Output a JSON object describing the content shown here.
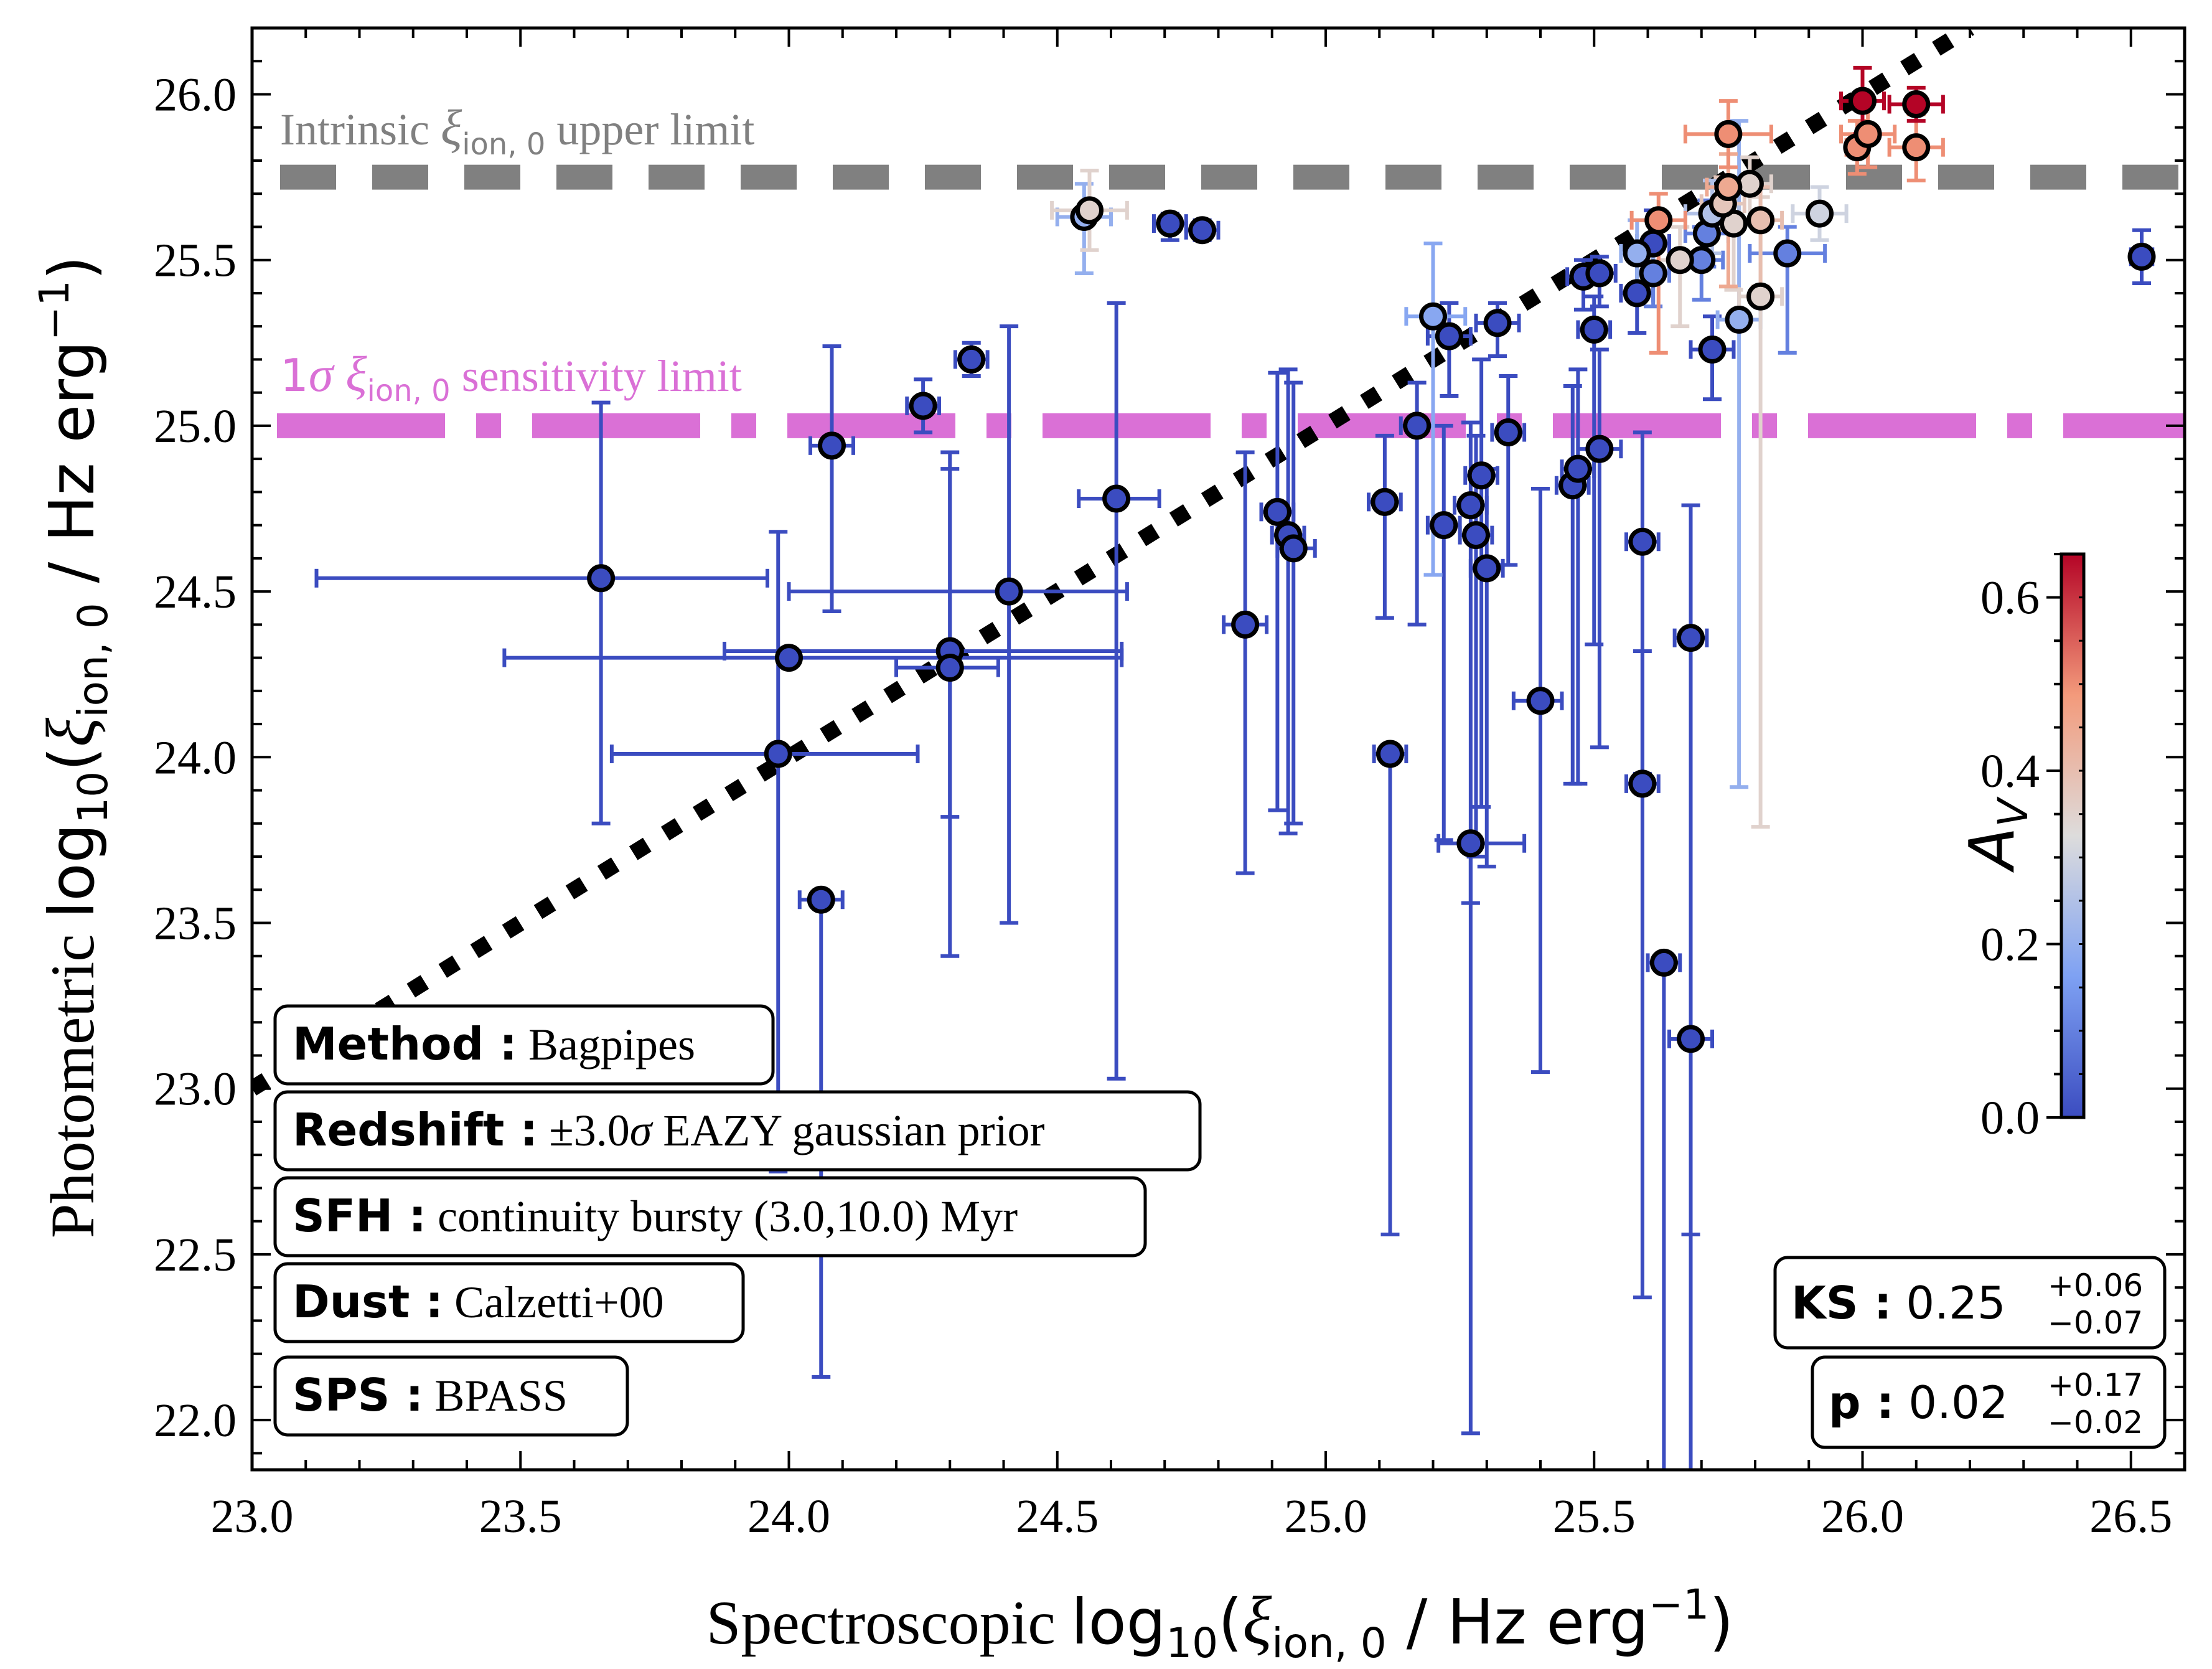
{
  "chart_data": {
    "type": "scatter",
    "xlabel_prefix": "Spectroscopic",
    "xlabel_math": "log",
    "xlabel_sub": "10",
    "xlabel_xi": "ξ",
    "xlabel_ion": "ion, 0",
    "xlabel_unit": " / Hz erg",
    "xlabel_exp": "−1",
    "ylabel_prefix": "Photometric",
    "ylabel_math": "log",
    "ylabel_sub": "10",
    "ylabel_xi": "ξ",
    "ylabel_ion": "ion, 0",
    "ylabel_unit": " / Hz erg",
    "ylabel_exp": "−1",
    "xlim": [
      23.0,
      26.6
    ],
    "ylim": [
      21.85,
      26.2
    ],
    "xticks": [
      23.0,
      23.5,
      24.0,
      24.5,
      25.0,
      25.5,
      26.0,
      26.5
    ],
    "xtick_labels": [
      "23.0",
      "23.5",
      "24.0",
      "24.5",
      "25.0",
      "25.5",
      "26.0",
      "26.5"
    ],
    "yticks": [
      22.0,
      22.5,
      23.0,
      23.5,
      24.0,
      24.5,
      25.0,
      25.5,
      26.0
    ],
    "ytick_labels": [
      "22.0",
      "22.5",
      "23.0",
      "23.5",
      "24.0",
      "24.5",
      "25.0",
      "25.5",
      "26.0"
    ],
    "hlines": [
      {
        "name": "intrinsic-upper-limit",
        "y": 25.75,
        "color": "#808080",
        "style": "dashed",
        "label_a": "Intrinsic ",
        "label_xi": "ξ",
        "label_ion": "ion, 0",
        "label_b": " upper limit"
      },
      {
        "name": "sensitivity-limit",
        "y": 25.0,
        "color": "#da70d6",
        "style": "dashdot",
        "label_a": "1",
        "label_sigma": "σ",
        "label_xi": " ξ",
        "label_ion": "ion, 0",
        "label_b": " sensitivity limit"
      }
    ],
    "one_to_one": {
      "from": [
        23.0,
        23.0
      ],
      "to": [
        26.2,
        26.2
      ],
      "style": "dotted",
      "color": "#000000"
    },
    "colorbar": {
      "label": "A",
      "label_sub": "V",
      "min": 0.0,
      "max": 0.65,
      "ticks": [
        0.0,
        0.2,
        0.4,
        0.6
      ],
      "tick_labels": [
        "0.0",
        "0.2",
        "0.4",
        "0.6"
      ]
    },
    "points": [
      {
        "x": 23.65,
        "y": 24.54,
        "xe": [
          0.53,
          0.31
        ],
        "ye": [
          0.74,
          0.53
        ],
        "av": 0.0
      },
      {
        "x": 24.0,
        "y": 24.3,
        "xe": [
          0.53,
          0.62
        ],
        "ye": [
          0.0,
          0.0
        ],
        "av": 0.0
      },
      {
        "x": 23.98,
        "y": 24.01,
        "xe": [
          0.31,
          0.26
        ],
        "ye": [
          1.26,
          0.67
        ],
        "av": 0.0
      },
      {
        "x": 24.06,
        "y": 23.57,
        "xe": [
          0.04,
          0.04
        ],
        "ye": [
          1.44,
          0.0
        ],
        "av": 0.0
      },
      {
        "x": 24.08,
        "y": 24.94,
        "xe": [
          0.04,
          0.04
        ],
        "ye": [
          0.5,
          0.3
        ],
        "av": 0.0
      },
      {
        "x": 24.25,
        "y": 25.06,
        "xe": [
          0.03,
          0.03
        ],
        "ye": [
          0.08,
          0.08
        ],
        "av": 0.0
      },
      {
        "x": 24.3,
        "y": 24.32,
        "xe": [
          0.42,
          0.32
        ],
        "ye": [
          0.92,
          0.6
        ],
        "av": 0.0
      },
      {
        "x": 24.3,
        "y": 24.27,
        "xe": [
          0.1,
          0.09
        ],
        "ye": [
          0.45,
          0.6
        ],
        "av": 0.0
      },
      {
        "x": 24.34,
        "y": 25.2,
        "xe": [
          0.03,
          0.03
        ],
        "ye": [
          0.05,
          0.05
        ],
        "av": 0.0
      },
      {
        "x": 24.41,
        "y": 24.5,
        "xe": [
          0.41,
          0.22
        ],
        "ye": [
          1.0,
          0.8
        ],
        "av": 0.0
      },
      {
        "x": 24.55,
        "y": 25.63,
        "xe": [
          0.05,
          0.05
        ],
        "ye": [
          0.17,
          0.1
        ],
        "av": 0.2
      },
      {
        "x": 24.56,
        "y": 25.65,
        "xe": [
          0.07,
          0.07
        ],
        "ye": [
          0.12,
          0.12
        ],
        "av": 0.35
      },
      {
        "x": 24.61,
        "y": 24.78,
        "xe": [
          0.07,
          0.08
        ],
        "ye": [
          1.75,
          0.59
        ],
        "av": 0.0
      },
      {
        "x": 24.71,
        "y": 25.61,
        "xe": [
          0.03,
          0.03
        ],
        "ye": [
          0.05,
          0.03
        ],
        "av": 0.0
      },
      {
        "x": 24.77,
        "y": 25.59,
        "xe": [
          0.03,
          0.03
        ],
        "ye": [
          0.03,
          0.03
        ],
        "av": 0.0
      },
      {
        "x": 24.85,
        "y": 24.4,
        "xe": [
          0.04,
          0.04
        ],
        "ye": [
          0.75,
          0.52
        ],
        "av": 0.0
      },
      {
        "x": 24.91,
        "y": 24.74,
        "xe": [
          0.03,
          0.03
        ],
        "ye": [
          0.9,
          0.42
        ],
        "av": 0.0
      },
      {
        "x": 24.93,
        "y": 24.67,
        "xe": [
          0.03,
          0.03
        ],
        "ye": [
          0.9,
          0.5
        ],
        "av": 0.0
      },
      {
        "x": 24.94,
        "y": 24.63,
        "xe": [
          0.03,
          0.04
        ],
        "ye": [
          0.83,
          0.5
        ],
        "av": 0.0
      },
      {
        "x": 25.11,
        "y": 24.77,
        "xe": [
          0.03,
          0.03
        ],
        "ye": [
          0.35,
          0.2
        ],
        "av": 0.0
      },
      {
        "x": 25.12,
        "y": 24.01,
        "xe": [
          0.03,
          0.03
        ],
        "ye": [
          1.45,
          0.0
        ],
        "av": 0.0
      },
      {
        "x": 25.17,
        "y": 25.0,
        "xe": [
          0.03,
          0.03
        ],
        "ye": [
          0.6,
          0.13
        ],
        "av": 0.0
      },
      {
        "x": 25.2,
        "y": 25.33,
        "xe": [
          0.05,
          0.06
        ],
        "ye": [
          0.78,
          0.22
        ],
        "av": 0.18
      },
      {
        "x": 25.22,
        "y": 24.7,
        "xe": [
          0.03,
          0.03
        ],
        "ye": [
          0.95,
          0.3
        ],
        "av": 0.0
      },
      {
        "x": 25.23,
        "y": 25.27,
        "xe": [
          0.04,
          0.04
        ],
        "ye": [
          0.18,
          0.1
        ],
        "av": 0.0
      },
      {
        "x": 25.27,
        "y": 24.76,
        "xe": [
          0.03,
          0.03
        ],
        "ye": [
          1.2,
          0.25
        ],
        "av": 0.0
      },
      {
        "x": 25.27,
        "y": 23.74,
        "xe": [
          0.06,
          0.1
        ],
        "ye": [
          1.78,
          0.0
        ],
        "av": 0.0
      },
      {
        "x": 25.28,
        "y": 24.67,
        "xe": [
          0.03,
          0.03
        ],
        "ye": [
          0.97,
          0.3
        ],
        "av": 0.0
      },
      {
        "x": 25.29,
        "y": 24.85,
        "xe": [
          0.03,
          0.03
        ],
        "ye": [
          1.0,
          0.35
        ],
        "av": 0.0
      },
      {
        "x": 25.3,
        "y": 24.57,
        "xe": [
          0.03,
          0.03
        ],
        "ye": [
          0.9,
          0.3
        ],
        "av": 0.0
      },
      {
        "x": 25.32,
        "y": 25.31,
        "xe": [
          0.04,
          0.04
        ],
        "ye": [
          0.1,
          0.06
        ],
        "av": 0.0
      },
      {
        "x": 25.34,
        "y": 24.98,
        "xe": [
          0.03,
          0.03
        ],
        "ye": [
          0.4,
          0.17
        ],
        "av": 0.0
      },
      {
        "x": 25.4,
        "y": 24.17,
        "xe": [
          0.05,
          0.04
        ],
        "ye": [
          1.12,
          0.64
        ],
        "av": 0.0
      },
      {
        "x": 25.46,
        "y": 24.82,
        "xe": [
          0.03,
          0.03
        ],
        "ye": [
          0.9,
          0.3
        ],
        "av": 0.0
      },
      {
        "x": 25.47,
        "y": 24.87,
        "xe": [
          0.03,
          0.03
        ],
        "ye": [
          0.95,
          0.3
        ],
        "av": 0.0
      },
      {
        "x": 25.48,
        "y": 25.45,
        "xe": [
          0.03,
          0.03
        ],
        "ye": [
          0.1,
          0.05
        ],
        "av": 0.0
      },
      {
        "x": 25.51,
        "y": 25.46,
        "xe": [
          0.03,
          0.03
        ],
        "ye": [
          0.1,
          0.05
        ],
        "av": 0.0
      },
      {
        "x": 25.5,
        "y": 25.29,
        "xe": [
          0.03,
          0.03
        ],
        "ye": [
          0.95,
          0.1
        ],
        "av": 0.0
      },
      {
        "x": 25.51,
        "y": 24.93,
        "xe": [
          0.04,
          0.04
        ],
        "ye": [
          0.9,
          0.3
        ],
        "av": 0.0
      },
      {
        "x": 25.58,
        "y": 25.4,
        "xe": [
          0.03,
          0.03
        ],
        "ye": [
          0.12,
          0.12
        ],
        "av": 0.0
      },
      {
        "x": 25.58,
        "y": 25.52,
        "xe": [
          0.03,
          0.03
        ],
        "ye": [
          0.12,
          0.1
        ],
        "av": 0.2
      },
      {
        "x": 25.59,
        "y": 24.65,
        "xe": [
          0.03,
          0.03
        ],
        "ye": [
          0.7,
          0.33
        ],
        "av": 0.0
      },
      {
        "x": 25.59,
        "y": 23.92,
        "xe": [
          0.03,
          0.03
        ],
        "ye": [
          1.55,
          0.4
        ],
        "av": 0.0
      },
      {
        "x": 25.61,
        "y": 25.55,
        "xe": [
          0.03,
          0.03
        ],
        "ye": [
          0.1,
          0.1
        ],
        "av": 0.0
      },
      {
        "x": 25.61,
        "y": 25.46,
        "xe": [
          0.03,
          0.03
        ],
        "ye": [
          0.1,
          0.1
        ],
        "av": 0.1
      },
      {
        "x": 25.62,
        "y": 25.62,
        "xe": [
          0.05,
          0.05
        ],
        "ye": [
          0.4,
          0.08
        ],
        "av": 0.5
      },
      {
        "x": 25.63,
        "y": 23.38,
        "xe": [
          0.03,
          0.03
        ],
        "ye": [
          2.0,
          0.0
        ],
        "av": 0.0
      },
      {
        "x": 25.66,
        "y": 25.5,
        "xe": [
          0.04,
          0.04
        ],
        "ye": [
          0.2,
          0.1
        ],
        "av": 0.35
      },
      {
        "x": 25.68,
        "y": 24.36,
        "xe": [
          0.03,
          0.03
        ],
        "ye": [
          1.8,
          0.4
        ],
        "av": 0.0
      },
      {
        "x": 25.68,
        "y": 23.15,
        "xe": [
          0.04,
          0.04
        ],
        "ye": [
          2.0,
          0.0
        ],
        "av": 0.0
      },
      {
        "x": 25.7,
        "y": 25.5,
        "xe": [
          0.04,
          0.04
        ],
        "ye": [
          0.12,
          0.1
        ],
        "av": 0.1
      },
      {
        "x": 25.71,
        "y": 25.58,
        "xe": [
          0.04,
          0.04
        ],
        "ye": [
          0.1,
          0.1
        ],
        "av": 0.1
      },
      {
        "x": 25.72,
        "y": 25.23,
        "xe": [
          0.04,
          0.04
        ],
        "ye": [
          0.15,
          0.1
        ],
        "av": 0.0
      },
      {
        "x": 25.72,
        "y": 25.64,
        "xe": [
          0.05,
          0.05
        ],
        "ye": [
          0.12,
          0.1
        ],
        "av": 0.25
      },
      {
        "x": 25.74,
        "y": 25.67,
        "xe": [
          0.04,
          0.04
        ],
        "ye": [
          0.08,
          0.08
        ],
        "av": 0.38
      },
      {
        "x": 25.75,
        "y": 25.72,
        "xe": [
          0.04,
          0.04
        ],
        "ye": [
          0.3,
          0.1
        ],
        "av": 0.45
      },
      {
        "x": 25.76,
        "y": 25.61,
        "xe": [
          0.04,
          0.04
        ],
        "ye": [
          0.2,
          0.1
        ],
        "av": 0.35
      },
      {
        "x": 25.75,
        "y": 25.88,
        "xe": [
          0.08,
          0.08
        ],
        "ye": [
          0.1,
          0.1
        ],
        "av": 0.5
      },
      {
        "x": 25.77,
        "y": 25.32,
        "xe": [
          0.04,
          0.04
        ],
        "ye": [
          1.41,
          0.6
        ],
        "av": 0.2
      },
      {
        "x": 25.79,
        "y": 25.73,
        "xe": [
          0.04,
          0.04
        ],
        "ye": [
          0.12,
          0.08
        ],
        "av": 0.35
      },
      {
        "x": 25.81,
        "y": 25.62,
        "xe": [
          0.04,
          0.04
        ],
        "ye": [
          0.2,
          0.1
        ],
        "av": 0.4
      },
      {
        "x": 25.81,
        "y": 25.39,
        "xe": [
          0.04,
          0.04
        ],
        "ye": [
          1.6,
          0.3
        ],
        "av": 0.35
      },
      {
        "x": 25.86,
        "y": 25.52,
        "xe": [
          0.07,
          0.07
        ],
        "ye": [
          0.3,
          0.08
        ],
        "av": 0.1
      },
      {
        "x": 25.92,
        "y": 25.64,
        "xe": [
          0.05,
          0.05
        ],
        "ye": [
          0.08,
          0.08
        ],
        "av": 0.3
      },
      {
        "x": 25.99,
        "y": 25.84,
        "xe": [
          0.02,
          0.02
        ],
        "ye": [
          0.08,
          0.08
        ],
        "av": 0.5
      },
      {
        "x": 26.0,
        "y": 25.98,
        "xe": [
          0.04,
          0.04
        ],
        "ye": [
          0.1,
          0.1
        ],
        "av": 0.65
      },
      {
        "x": 26.01,
        "y": 25.88,
        "xe": [
          0.05,
          0.05
        ],
        "ye": [
          0.1,
          0.1
        ],
        "av": 0.5
      },
      {
        "x": 26.1,
        "y": 25.97,
        "xe": [
          0.05,
          0.05
        ],
        "ye": [
          0.05,
          0.05
        ],
        "av": 0.65
      },
      {
        "x": 26.1,
        "y": 25.84,
        "xe": [
          0.05,
          0.05
        ],
        "ye": [
          0.1,
          0.1
        ],
        "av": 0.5
      },
      {
        "x": 26.52,
        "y": 25.51,
        "xe": [
          0.02,
          0.02
        ],
        "ye": [
          0.08,
          0.08
        ],
        "av": 0.0
      }
    ]
  },
  "info_boxes": [
    {
      "key": "Method :",
      "value": "Bagpipes"
    },
    {
      "key": "Redshift :",
      "value_a": "±3.0",
      "value_sigma": "σ",
      "value_b": " EAZY gaussian prior"
    },
    {
      "key": "SFH :",
      "value": "continuity bursty (3.0,10.0) Myr"
    },
    {
      "key": "Dust :",
      "value": "Calzetti+00"
    },
    {
      "key": "SPS :",
      "value": "BPASS"
    }
  ],
  "stats": {
    "ks": {
      "key": "KS :",
      "value": "0.25",
      "sup": "+0.06",
      "sub": "−0.07"
    },
    "p": {
      "key": "p :",
      "value": "0.02",
      "sup": "+0.17",
      "sub": "−0.02"
    }
  }
}
